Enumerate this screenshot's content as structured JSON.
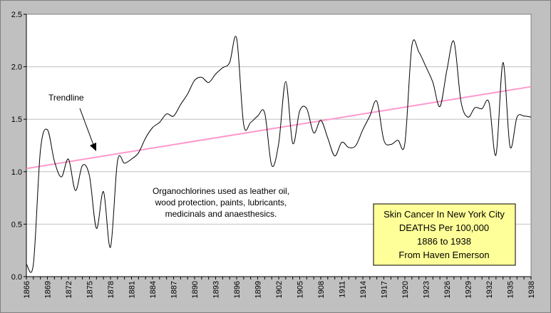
{
  "chart_data": {
    "type": "line",
    "title": "",
    "xlabel": "",
    "ylabel": "",
    "ylim": [
      0.0,
      2.5
    ],
    "xlim": [
      1866,
      1938
    ],
    "grid": "horizontal",
    "y_ticks": [
      "0.0",
      "0.5",
      "1.0",
      "1.5",
      "2.0",
      "2.5"
    ],
    "x_ticks": [
      "1866",
      "1869",
      "1872",
      "1875",
      "1878",
      "1881",
      "1884",
      "1887",
      "1890",
      "1893",
      "1896",
      "1899",
      "1902",
      "1905",
      "1908",
      "1911",
      "1914",
      "1917",
      "1920",
      "1923",
      "1926",
      "1929",
      "1932",
      "1935",
      "1938"
    ],
    "colors": {
      "series": "#000000",
      "trend": "#ff99cc",
      "plot_bg": "#ffffff",
      "grid": "#c0c0c0",
      "box_bg": "#ffff99"
    },
    "series": [
      {
        "x": [
          1866,
          1867,
          1868,
          1869,
          1870,
          1871,
          1872,
          1873,
          1874,
          1875,
          1876,
          1877,
          1878,
          1879,
          1880,
          1881,
          1882,
          1883,
          1884,
          1885,
          1886,
          1887,
          1888,
          1889,
          1890,
          1891,
          1892,
          1893,
          1894,
          1895,
          1896,
          1897,
          1898,
          1899,
          1900,
          1901,
          1902,
          1903,
          1904,
          1905,
          1906,
          1907,
          1908,
          1909,
          1910,
          1911,
          1912,
          1913,
          1914,
          1915,
          1916,
          1917,
          1918,
          1919,
          1920,
          1921,
          1922,
          1923,
          1924,
          1925,
          1926,
          1927,
          1928,
          1929,
          1930,
          1931,
          1932,
          1933,
          1934,
          1935,
          1936,
          1937,
          1938
        ],
        "values": [
          0.12,
          0.12,
          1.2,
          1.4,
          1.1,
          0.95,
          1.12,
          0.82,
          1.06,
          0.96,
          0.46,
          0.81,
          0.28,
          1.1,
          1.08,
          1.12,
          1.18,
          1.32,
          1.42,
          1.47,
          1.55,
          1.53,
          1.64,
          1.74,
          1.87,
          1.9,
          1.85,
          1.93,
          1.99,
          2.04,
          2.27,
          1.45,
          1.47,
          1.53,
          1.56,
          1.06,
          1.27,
          1.86,
          1.27,
          1.58,
          1.6,
          1.37,
          1.49,
          1.32,
          1.15,
          1.28,
          1.23,
          1.25,
          1.4,
          1.53,
          1.67,
          1.3,
          1.26,
          1.3,
          1.27,
          2.2,
          2.14,
          2.0,
          1.85,
          1.62,
          1.97,
          2.24,
          1.67,
          1.52,
          1.61,
          1.6,
          1.66,
          1.16,
          2.04,
          1.24,
          1.52,
          1.53,
          1.52
        ]
      }
    ],
    "trend": {
      "x": [
        1866,
        1938
      ],
      "values": [
        1.03,
        1.81
      ]
    },
    "annotations": {
      "trendline_label": "Trendline",
      "organochlorines_lines": [
        "Organochlorines used as leather oil,",
        "wood protection, paints, lubricants,",
        "medicinals and anaesthesics."
      ],
      "info_box_lines": [
        "Skin Cancer In New York City",
        "DEATHS Per 100,000",
        "1886 to 1938",
        "From Haven Emerson"
      ]
    }
  }
}
